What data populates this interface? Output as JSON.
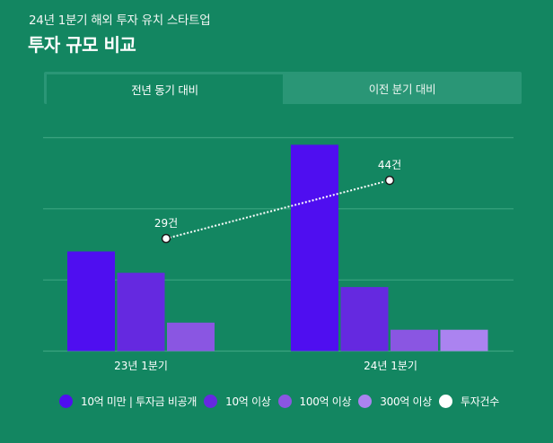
{
  "header": {
    "subtitle": "24년 1분기 해외 투자 유치 스타트업",
    "title": "투자 규모 비교"
  },
  "tabs": [
    {
      "label": "전년 동기 대비",
      "active": true
    },
    {
      "label": "이전 분기 대비",
      "active": false
    }
  ],
  "chart_data": {
    "type": "bar",
    "title": "투자 규모 비교",
    "categories": [
      "23년 1분기",
      "24년 1분기"
    ],
    "ylim": [
      0,
      30
    ],
    "y2lim": [
      0,
      55
    ],
    "grid": true,
    "legend_position": "bottom",
    "series": [
      {
        "name": "10억 미만 | 투자금 비공개",
        "color": "#4f0ef0",
        "values": [
          14,
          29
        ]
      },
      {
        "name": "10억 이상",
        "color": "#6529e0",
        "values": [
          11,
          9
        ]
      },
      {
        "name": "100억 이상",
        "color": "#8a56e2",
        "values": [
          4,
          3
        ]
      },
      {
        "name": "300억 이상",
        "color": "#ab83f0",
        "values": [
          0,
          3
        ]
      }
    ],
    "line_series": {
      "name": "투자건수",
      "color": "#ffffff",
      "axis": "secondary",
      "values": [
        29,
        44
      ],
      "labels": [
        "29건",
        "44건"
      ]
    }
  }
}
